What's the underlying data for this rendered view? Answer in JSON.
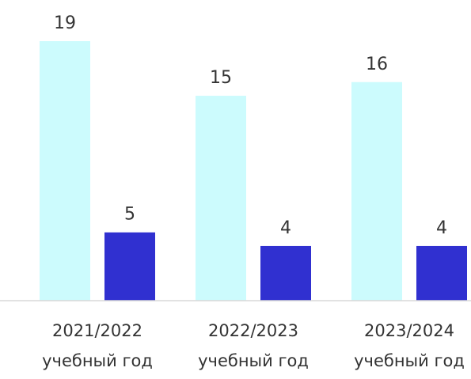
{
  "chart_data": {
    "type": "bar",
    "categories": [
      [
        "2021/2022",
        "учебный год"
      ],
      [
        "2022/2023",
        "учебный год"
      ],
      [
        "2023/2024",
        "учебный год"
      ]
    ],
    "series": [
      {
        "values": [
          19,
          15,
          16
        ],
        "color": "#ccfbfd"
      },
      {
        "values": [
          5,
          4,
          4
        ],
        "color": "#3030d0"
      }
    ],
    "ylim": [
      0,
      19
    ],
    "grid": false,
    "axis_color": "#d8d8d8",
    "text_color": "#333333",
    "title": "",
    "xlabel": "",
    "ylabel": ""
  }
}
